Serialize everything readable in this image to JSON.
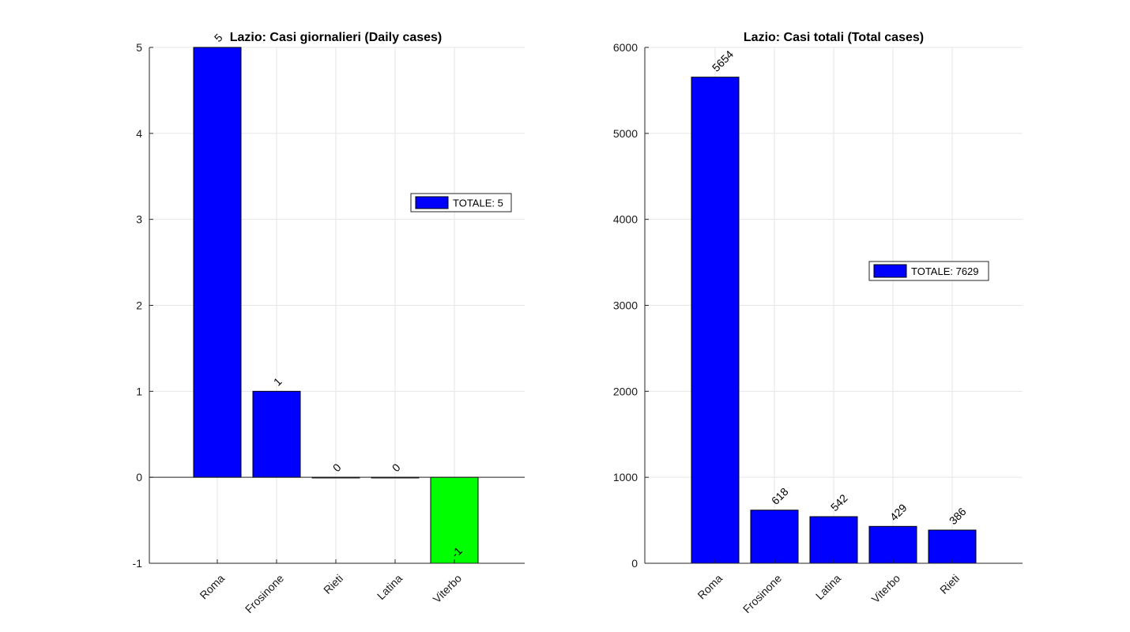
{
  "chart_data": [
    {
      "type": "bar",
      "title": "Lazio: Casi giornalieri (Daily cases)",
      "xlabel": "",
      "ylabel": "",
      "categories": [
        "Roma",
        "Frosinone",
        "Rieti",
        "Latina",
        "Viterbo"
      ],
      "values": [
        5,
        1,
        0,
        0,
        -1
      ],
      "data_labels": [
        "5",
        "1",
        "0",
        "0",
        "-1"
      ],
      "bar_colors": [
        "#0000ff",
        "#0000ff",
        "#0000ff",
        "#0000ff",
        "#00ff00"
      ],
      "ylim": [
        -1,
        5
      ],
      "yticks": [
        -1,
        0,
        1,
        2,
        3,
        4,
        5
      ],
      "grid": true,
      "legend": {
        "label": "TOTALE: 5",
        "color": "#0000ff",
        "placement": "right"
      }
    },
    {
      "type": "bar",
      "title": "Lazio: Casi totali (Total cases)",
      "xlabel": "",
      "ylabel": "",
      "categories": [
        "Roma",
        "Frosinone",
        "Latina",
        "Viterbo",
        "Rieti"
      ],
      "values": [
        5654,
        618,
        542,
        429,
        386
      ],
      "data_labels": [
        "5654",
        "618",
        "542",
        "429",
        "386"
      ],
      "bar_colors": [
        "#0000ff",
        "#0000ff",
        "#0000ff",
        "#0000ff",
        "#0000ff"
      ],
      "ylim": [
        0,
        6000
      ],
      "yticks": [
        0,
        1000,
        2000,
        3000,
        4000,
        5000,
        6000
      ],
      "grid": true,
      "legend": {
        "label": "TOTALE: 7629",
        "color": "#0000ff",
        "placement": "right"
      }
    }
  ]
}
